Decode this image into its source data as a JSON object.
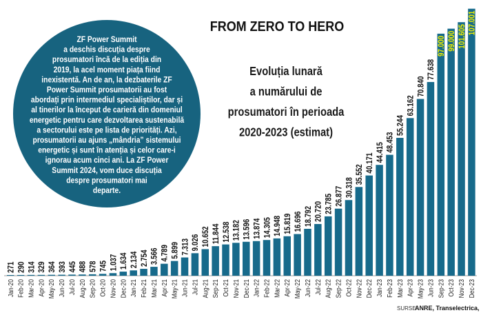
{
  "chart_data": {
    "type": "bar",
    "title": "FROM ZERO TO HERO",
    "subtitle_lines": [
      "Evoluția lunară",
      "a numărului de",
      "prosumatori în perioada",
      "2020-2023 (estimat)"
    ],
    "categories": [
      "Jan-20",
      "Feb-20",
      "Mar-20",
      "Apr-20",
      "May-20",
      "Jun-20",
      "Jul-20",
      "Aug-20",
      "Sep-20",
      "Oct-20",
      "Nov-20",
      "Dec-20",
      "Jan-21",
      "Feb-21",
      "Mar-21",
      "Apr-21",
      "May-21",
      "Jun-21",
      "Jul-21",
      "Aug-21",
      "Sep-21",
      "Oct-21",
      "Nov-21",
      "Dec-21",
      "Jan-22",
      "Feb-22",
      "Mar-22",
      "Apr-22",
      "May-22",
      "Jun-22",
      "Jul-22",
      "Aug-22",
      "Sep-22",
      "Oct-22",
      "Nov-22",
      "Dec-22",
      "Jan-23",
      "Feb-23",
      "Mar-23",
      "Apr-23",
      "May-23",
      "Jun-23",
      "Sep-23",
      "Oct-23",
      "Nov-23",
      "Dec-23"
    ],
    "values": [
      271,
      290,
      314,
      329,
      364,
      393,
      445,
      488,
      578,
      745,
      1037,
      1634,
      2134,
      2754,
      3566,
      4789,
      5899,
      7313,
      9026,
      10652,
      11844,
      12538,
      13182,
      13596,
      13874,
      14305,
      14948,
      15819,
      16696,
      18792,
      20720,
      23785,
      26877,
      30318,
      35552,
      40171,
      44415,
      48453,
      55244,
      63162,
      70840,
      77638,
      97000,
      99000,
      101605,
      107001
    ],
    "estimated_from_index": 42,
    "number_format": "dot thousands separator",
    "ylim": [
      0,
      110000
    ],
    "grid": false,
    "legend": "none",
    "colors": {
      "bar": "#176a8b",
      "label": "#111111",
      "estimated_label": "#f2ef00",
      "circle": "#17637f"
    },
    "source_label": "SURSE",
    "source": "ANRE, Transelectrica, ZF"
  },
  "callout": {
    "lines": [
      "ZF Power Summit",
      "a deschis discuția despre",
      "prosumatori încă de la ediția din",
      "2019, la acel moment piața fiind",
      "inexistentă. An de an, la dezbaterile ZF",
      "Power Summit prosumatorii au fost",
      "abordați prin intermediul specialiștilor, dar și",
      "al tinerilor la început de carieră din domeniul",
      "energetic pentru care dezvoltarea sustenabilă",
      "a sectorului este pe lista de priorități. Azi,",
      "prosumatorii au ajuns „mândria” sistemului",
      "energetic și sunt în atenția și celor care-i",
      "ignorau acum cinci ani. La ZF Power",
      "Summit 2024, vom duce discuția",
      "despre prosumatori mai",
      "departe."
    ]
  }
}
